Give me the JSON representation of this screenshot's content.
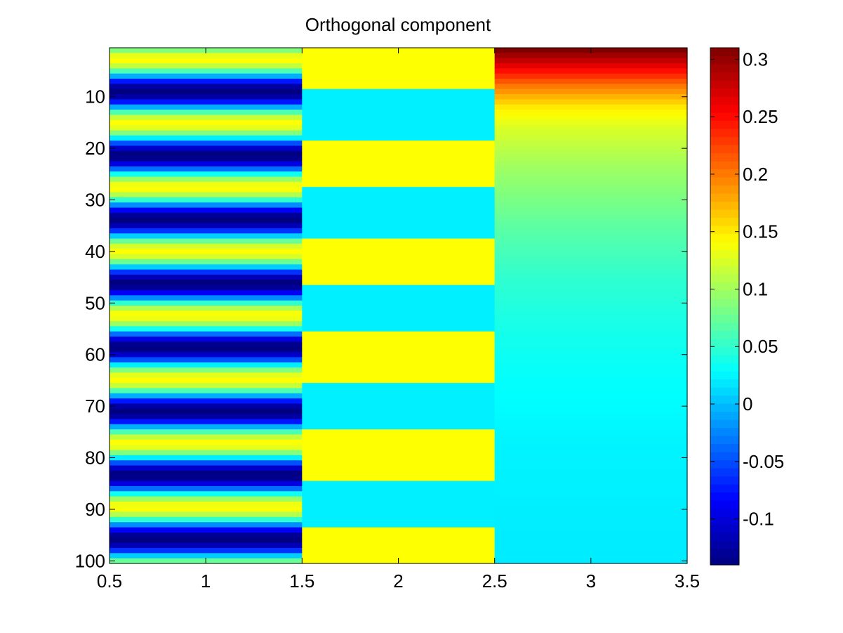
{
  "chart_data": {
    "type": "heatmap",
    "title": "Orthogonal component",
    "xlabel": "",
    "ylabel": "",
    "x_categories": [
      1,
      2,
      3
    ],
    "xlim": [
      0.5,
      3.5
    ],
    "ylim": [
      0.5,
      100.5
    ],
    "y_reversed": true,
    "x_ticks": [
      "0.5",
      "1",
      "1.5",
      "2",
      "2.5",
      "3",
      "3.5"
    ],
    "y_ticks": [
      "10",
      "20",
      "30",
      "40",
      "50",
      "60",
      "70",
      "80",
      "90",
      "100"
    ],
    "colorbar": {
      "colormap": "jet",
      "min": -0.14,
      "max": 0.31,
      "ticks": [
        "-0.1",
        "-0.05",
        "0",
        "0.05",
        "0.1",
        "0.15",
        "0.2",
        "0.25",
        "0.3"
      ]
    },
    "columns": [
      {
        "x": 1,
        "description": "cosine-like oscillation, period ~12.4 rows",
        "model": "cosine",
        "amplitude": 0.141,
        "period_rows": 12.4,
        "trough_row": 9,
        "row_range": [
          1,
          100
        ]
      },
      {
        "x": 2,
        "model": "bands",
        "bands": [
          {
            "from": 1,
            "to": 8,
            "value": 0.141
          },
          {
            "from": 9,
            "to": 18,
            "value": 0.022
          },
          {
            "from": 19,
            "to": 27,
            "value": 0.141
          },
          {
            "from": 28,
            "to": 37,
            "value": 0.022
          },
          {
            "from": 38,
            "to": 46,
            "value": 0.141
          },
          {
            "from": 47,
            "to": 55,
            "value": 0.022
          },
          {
            "from": 56,
            "to": 65,
            "value": 0.141
          },
          {
            "from": 66,
            "to": 74,
            "value": 0.022
          },
          {
            "from": 75,
            "to": 84,
            "value": 0.141
          },
          {
            "from": 85,
            "to": 93,
            "value": 0.022
          },
          {
            "from": 94,
            "to": 100,
            "value": 0.141
          }
        ]
      },
      {
        "x": 3,
        "model": "piecewise-linear",
        "points": [
          {
            "row": 1,
            "value": 0.31
          },
          {
            "row": 4,
            "value": 0.265
          },
          {
            "row": 8,
            "value": 0.2
          },
          {
            "row": 12,
            "value": 0.15
          },
          {
            "row": 16,
            "value": 0.125
          },
          {
            "row": 24,
            "value": 0.098
          },
          {
            "row": 35,
            "value": 0.07
          },
          {
            "row": 45,
            "value": 0.05
          },
          {
            "row": 55,
            "value": 0.038
          },
          {
            "row": 65,
            "value": 0.03
          },
          {
            "row": 78,
            "value": 0.024
          },
          {
            "row": 100,
            "value": 0.02
          }
        ]
      }
    ]
  }
}
